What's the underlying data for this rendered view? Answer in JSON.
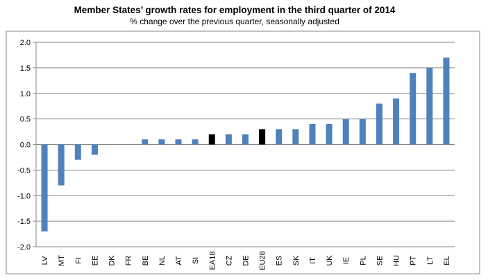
{
  "chart_data": {
    "type": "bar",
    "title": "Member States’ growth rates for employment in the third quarter of 2014",
    "subtitle": "% change over the previous quarter, seasonally adjusted",
    "xlabel": "",
    "ylabel": "",
    "ylim": [
      -2.0,
      2.0
    ],
    "yticks": [
      "2.0",
      "1.5",
      "1.0",
      "0.5",
      "0.0",
      "-0.5",
      "-1.0",
      "-1.5",
      "-2.0"
    ],
    "ytick_values": [
      2.0,
      1.5,
      1.0,
      0.5,
      0.0,
      -0.5,
      -1.0,
      -1.5,
      -2.0
    ],
    "grid": true,
    "categories": [
      "LV",
      "MT",
      "FI",
      "EE",
      "DK",
      "FR",
      "BE",
      "NL",
      "AT",
      "SI",
      "EA18",
      "CZ",
      "DE",
      "EU28",
      "ES",
      "SK",
      "IT",
      "UK",
      "IE",
      "PL",
      "SE",
      "HU",
      "PT",
      "LT",
      "EL"
    ],
    "values": [
      -1.7,
      -0.8,
      -0.3,
      -0.2,
      0.0,
      0.0,
      0.1,
      0.1,
      0.1,
      0.1,
      0.2,
      0.2,
      0.2,
      0.3,
      0.3,
      0.3,
      0.4,
      0.4,
      0.5,
      0.5,
      0.8,
      0.9,
      1.4,
      1.5,
      1.7
    ],
    "highlight": [
      "EA18",
      "EU28"
    ],
    "colors": {
      "bar": "#4f81bd",
      "highlight": "#000000",
      "grid": "#868686",
      "frame": "#868686"
    }
  }
}
